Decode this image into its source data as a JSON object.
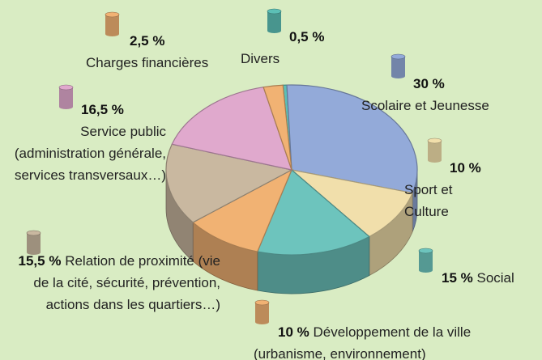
{
  "chart_data": {
    "type": "pie",
    "categories": [
      "Divers",
      "Scolaire et Jeunesse",
      "Sport et Culture",
      "Social",
      "Développement de la ville (urbanisme, environnement)",
      "Relation de proximité (vie de la cité, sécurité, prévention, actions dans les quartiers…)",
      "Service public (administration générale, services transversaux…)",
      "Charges financières"
    ],
    "values": [
      0.5,
      30,
      10,
      15,
      10,
      15.5,
      16.5,
      2.5
    ],
    "value_labels": [
      "0,5 %",
      "30 %",
      "10 %",
      "15 %",
      "10 %",
      "15,5 %",
      "16,5 %",
      "2,5 %"
    ],
    "colors": [
      "#5cbfb6",
      "#93aad9",
      "#f1dfab",
      "#6dc4bd",
      "#f1b273",
      "#c9b8a0",
      "#e0a9cd",
      "#f1b273"
    ]
  }
}
